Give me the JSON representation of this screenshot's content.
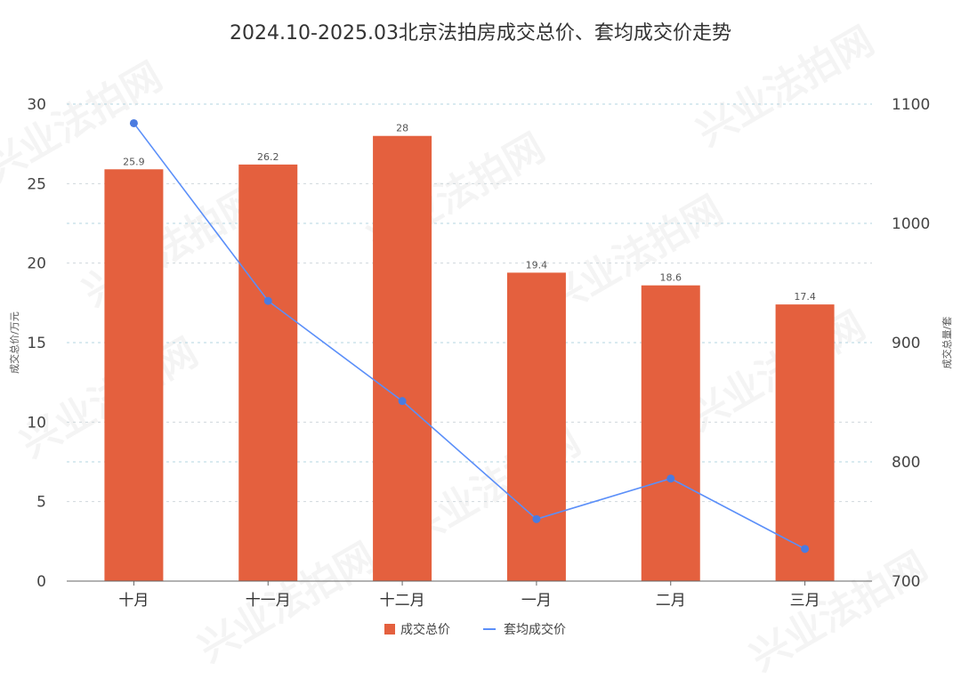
{
  "chart_data": {
    "type": "bar",
    "title": "2024.10-2025.03北京法拍房成交总价、套均成交价走势",
    "categories": [
      "十月",
      "十一月",
      "十二月",
      "一月",
      "二月",
      "三月"
    ],
    "series": [
      {
        "name": "成交总价",
        "type": "bar",
        "axis": "left",
        "color": "#e4603e",
        "values": [
          25.9,
          26.2,
          28,
          19.4,
          18.6,
          17.4
        ],
        "labels": [
          "25.9",
          "26.2",
          "28",
          "19.4",
          "18.6",
          "17.4"
        ]
      },
      {
        "name": "套均成交价",
        "type": "line",
        "axis": "right",
        "color": "#5b8ff9",
        "values": [
          1084,
          935,
          851,
          752,
          786,
          727
        ]
      }
    ],
    "y_left": {
      "label": "成交总价/万元",
      "range": [
        0,
        30
      ],
      "ticks": [
        "0",
        "5",
        "10",
        "15",
        "20",
        "25",
        "30"
      ]
    },
    "y_right": {
      "label": "成交总量/套",
      "range": [
        700,
        1100
      ],
      "ticks": [
        "700",
        "800",
        "900",
        "1000",
        "1100"
      ]
    },
    "legend": {
      "placement": "bottom-center"
    },
    "grid": true
  },
  "watermark": "兴业法拍网"
}
